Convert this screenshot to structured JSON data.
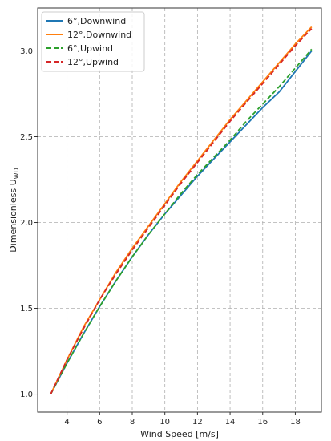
{
  "chart_data": {
    "type": "line",
    "title": "",
    "xlabel": "Wind Speed [m/s]",
    "ylabel": "Dimensionless U",
    "ylabel_sub": "WD",
    "xlim": [
      2.2,
      19.6
    ],
    "ylim": [
      0.895,
      3.25
    ],
    "xticks": [
      4,
      6,
      8,
      10,
      12,
      14,
      16,
      18
    ],
    "yticks": [
      1.0,
      1.5,
      2.0,
      2.5,
      3.0
    ],
    "ytick_labels": [
      "1.0",
      "1.5",
      "2.0",
      "2.5",
      "3.0"
    ],
    "grid": true,
    "legend_position": "top-left",
    "series": [
      {
        "name": "6°,Downwind",
        "color": "#1f77b4",
        "dashed": false,
        "x": [
          3,
          4,
          5,
          6,
          7,
          8,
          9,
          10,
          11,
          12,
          13,
          14,
          15,
          16,
          17,
          18,
          19
        ],
        "y": [
          1.0,
          1.18,
          1.35,
          1.51,
          1.66,
          1.8,
          1.93,
          2.05,
          2.16,
          2.27,
          2.37,
          2.47,
          2.57,
          2.67,
          2.76,
          2.88,
          3.0
        ]
      },
      {
        "name": "12°,Downwind",
        "color": "#ff7f0e",
        "dashed": false,
        "x": [
          3,
          4,
          5,
          6,
          7,
          8,
          9,
          10,
          11,
          12,
          13,
          14,
          15,
          16,
          17,
          18,
          19
        ],
        "y": [
          1.0,
          1.2,
          1.39,
          1.55,
          1.71,
          1.85,
          1.98,
          2.11,
          2.24,
          2.36,
          2.48,
          2.6,
          2.71,
          2.82,
          2.93,
          3.04,
          3.14
        ]
      },
      {
        "name": "6°,Upwind",
        "color": "#2ca02c",
        "dashed": true,
        "x": [
          3,
          4,
          5,
          6,
          7,
          8,
          9,
          10,
          11,
          12,
          13,
          14,
          15,
          16,
          17,
          18,
          19
        ],
        "y": [
          1.0,
          1.18,
          1.35,
          1.51,
          1.66,
          1.8,
          1.93,
          2.05,
          2.17,
          2.28,
          2.38,
          2.48,
          2.59,
          2.69,
          2.79,
          2.9,
          3.01
        ]
      },
      {
        "name": "12°,Upwind",
        "color": "#d62728",
        "dashed": true,
        "x": [
          3,
          4,
          5,
          6,
          7,
          8,
          9,
          10,
          11,
          12,
          13,
          14,
          15,
          16,
          17,
          18,
          19
        ],
        "y": [
          1.0,
          1.2,
          1.38,
          1.55,
          1.7,
          1.84,
          1.97,
          2.1,
          2.23,
          2.35,
          2.47,
          2.59,
          2.7,
          2.81,
          2.92,
          3.03,
          3.13
        ]
      }
    ]
  }
}
